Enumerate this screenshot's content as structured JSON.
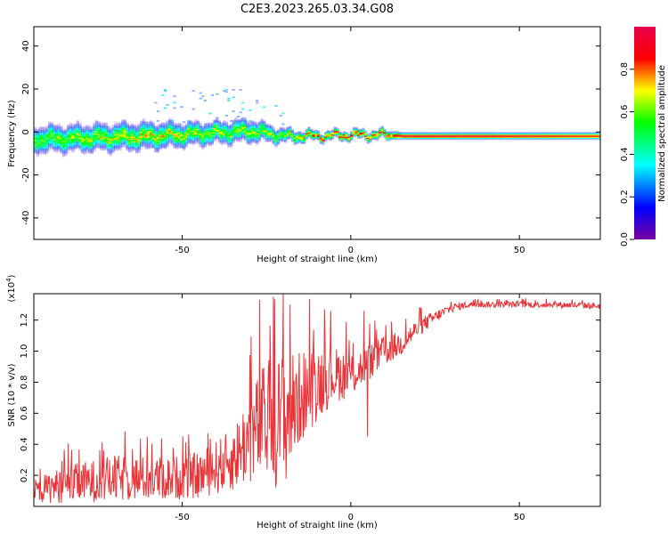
{
  "title": "C2E3.2023.265.03.34.G08",
  "chart_data": [
    {
      "type": "heatmap",
      "xlabel": "Height of straight line (km)",
      "ylabel": "Frequency (Hz)",
      "xlim": [
        -94,
        74
      ],
      "ylim": [
        -50,
        49
      ],
      "xticks": [
        -50,
        0,
        50
      ],
      "yticks": [
        -40,
        -20,
        0,
        20,
        40
      ],
      "colorbar": {
        "label": "Normalized spectral amplitude",
        "range": [
          0,
          1
        ],
        "ticks": [
          "0.0",
          "0.2",
          "0.4",
          "0.6",
          "0.8"
        ],
        "colormap": [
          "#7800a0",
          "#0000ff",
          "#00ffff",
          "#00ff00",
          "#ffff00",
          "#ff0000",
          "#e6004c"
        ]
      },
      "ridge": [
        {
          "x": -94,
          "freq": -3.5,
          "amp": 0.55,
          "spread": 6
        },
        {
          "x": -80,
          "freq": -3.0,
          "amp": 0.6,
          "spread": 6
        },
        {
          "x": -60,
          "freq": -2.0,
          "amp": 0.65,
          "spread": 6
        },
        {
          "x": -45,
          "freq": -1.0,
          "amp": 0.6,
          "spread": 5
        },
        {
          "x": -30,
          "freq": 0.5,
          "amp": 0.6,
          "spread": 5
        },
        {
          "x": -20,
          "freq": -2.0,
          "amp": 0.6,
          "spread": 3
        },
        {
          "x": -10,
          "freq": -2.0,
          "amp": 0.8,
          "spread": 2
        },
        {
          "x": 0,
          "freq": -1.5,
          "amp": 0.85,
          "spread": 2
        },
        {
          "x": 10,
          "freq": -1.5,
          "amp": 0.8,
          "spread": 2
        },
        {
          "x": 15,
          "freq": -2.0,
          "amp": 0.95,
          "spread": 1.5
        },
        {
          "x": 40,
          "freq": -2.0,
          "amp": 0.95,
          "spread": 1.5
        },
        {
          "x": 74,
          "freq": -2.0,
          "amp": 0.9,
          "spread": 1.5
        }
      ]
    },
    {
      "type": "line",
      "xlabel": "Height of straight line (km)",
      "ylabel": "SNR (10 * v/v)",
      "y_multiplier": "(x10",
      "y_multiplier_exp": "4",
      "y_multiplier_close": ")",
      "xlim": [
        -94,
        74
      ],
      "ylim": [
        0.0,
        1.37
      ],
      "xticks": [
        -50,
        0,
        50
      ],
      "yticks": [
        0.2,
        0.4,
        0.6,
        0.8,
        1.0,
        1.2
      ],
      "ytick_labels": [
        "0.2",
        "0.4",
        "0.6",
        "0.8",
        "1.0",
        "1.2"
      ],
      "color": "#e8353a",
      "envelope": {
        "x": [
          -94,
          -85,
          -70,
          -55,
          -45,
          -35,
          -30,
          -25,
          -20,
          -15,
          -10,
          -5,
          0,
          5,
          10,
          15,
          20,
          25,
          30,
          35,
          40,
          50,
          60,
          74
        ],
        "mean": [
          0.1,
          0.14,
          0.18,
          0.18,
          0.2,
          0.3,
          0.45,
          0.55,
          0.55,
          0.7,
          0.8,
          0.85,
          0.85,
          0.92,
          1.0,
          1.05,
          1.15,
          1.22,
          1.28,
          1.3,
          1.3,
          1.3,
          1.3,
          1.29
        ],
        "amp": [
          0.08,
          0.12,
          0.15,
          0.14,
          0.15,
          0.2,
          0.3,
          0.4,
          0.45,
          0.3,
          0.25,
          0.18,
          0.15,
          0.12,
          0.1,
          0.08,
          0.06,
          0.04,
          0.03,
          0.02,
          0.02,
          0.02,
          0.02,
          0.02
        ]
      },
      "peaks": [
        {
          "x": -27,
          "y": 1.33
        },
        {
          "x": -23,
          "y": 1.35
        },
        {
          "x": -20,
          "y": 1.37
        },
        {
          "x": -18,
          "y": 1.3
        },
        {
          "x": 4,
          "y": 1.26
        },
        {
          "x": 5,
          "y": 0.45
        }
      ]
    }
  ]
}
